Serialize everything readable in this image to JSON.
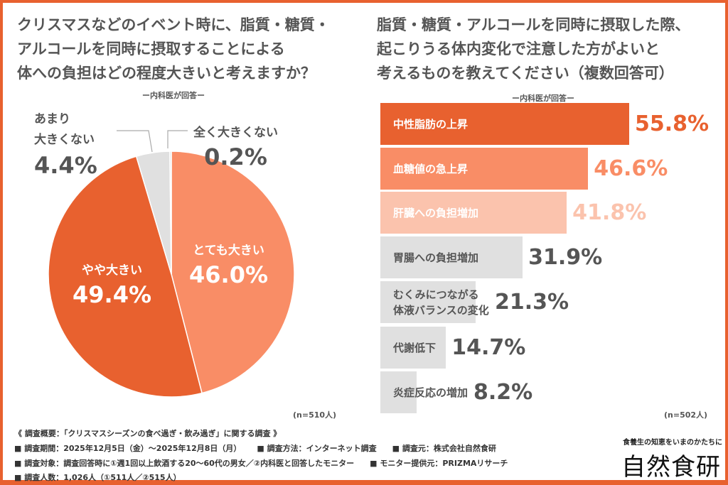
{
  "left": {
    "title_lines": [
      "クリスマスなどのイベント時に、脂質・糖質・",
      "アルコールを同時に摂取することによる",
      "体への負担はどの程度大きいと考えますか？"
    ],
    "respondent": "ー内科医が回答ー",
    "n": "(n=510人)"
  },
  "right": {
    "title_lines": [
      "脂質・糖質・アルコールを同時に摂取した際、",
      "起こりうる体内変化で注意した方がよいと",
      "考えるものを教えてください（複数回答可）"
    ],
    "respondent": "ー内科医が回答ー",
    "n": "(n=502人)"
  },
  "chart_data": [
    {
      "type": "pie",
      "categories": [
        "とても大きい",
        "やや大きい",
        "あまり大きくない",
        "全く大きくない"
      ],
      "values": [
        46.0,
        49.4,
        4.4,
        0.2
      ],
      "labels": [
        "46.0%",
        "49.4%",
        "4.4%",
        "0.2%"
      ],
      "label_lines": [
        [
          "とても大きい"
        ],
        [
          "やや大きい"
        ],
        [
          "あまり",
          "大きくない"
        ],
        [
          "全く大きくない"
        ]
      ],
      "colors": [
        "#f98d66",
        "#e8612f",
        "#e0e0e0",
        "#d6d6d6"
      ],
      "start": "top",
      "direction": "clockwise"
    },
    {
      "type": "bar",
      "orientation": "horizontal",
      "categories": [
        "中性脂肪の上昇",
        "血糖値の急上昇",
        "肝臓への負担増加",
        "胃腸への負担増加",
        "むくみにつながる体液バランスの変化",
        "代謝低下",
        "炎症反応の増加"
      ],
      "category_lines": [
        [
          "中性脂肪の上昇"
        ],
        [
          "血糖値の急上昇"
        ],
        [
          "肝臓への負担増加"
        ],
        [
          "胃腸への負担増加"
        ],
        [
          "むくみにつながる",
          "体液バランスの変化"
        ],
        [
          "代謝低下"
        ],
        [
          "炎症反応の増加"
        ]
      ],
      "values": [
        55.8,
        46.6,
        41.8,
        31.9,
        21.3,
        14.7,
        8.2
      ],
      "labels": [
        "55.8%",
        "46.6%",
        "41.8%",
        "31.9%",
        "21.3%",
        "14.7%",
        "8.2%"
      ],
      "colors": [
        "#e8612f",
        "#f98d66",
        "#fbc3ad",
        "#e0e0e0",
        "#e0e0e0",
        "#e0e0e0",
        "#e0e0e0"
      ],
      "label_colors": [
        "#ffffff",
        "#ffffff",
        "#ffffff",
        "#555555",
        "#555555",
        "#555555",
        "#555555"
      ],
      "value_colors": [
        "#e8612f",
        "#f98d66",
        "#fbc3ad",
        "#555555",
        "#555555",
        "#555555",
        "#555555"
      ],
      "unit": "%"
    }
  ],
  "footer": {
    "lines": [
      "《 調査概要：「クリスマスシーズンの食べ過ぎ・飲み過ぎ」に関する調査 》",
      "■ 調査期間：2025年12月5日（金）〜2025年12月8日（月）",
      "■ 調査方法：インターネット調査",
      "■ 調査元：株式会社自然食研",
      "■ 調査対象：調査回答時に①週1回以上飲酒する20〜60代の男女／②内科医と回答したモニター",
      "■ モニター提供元：PRIZMAリサーチ",
      "■ 調査人数：1,026人（①511人／②515人）"
    ],
    "logo_tagline": "食養生の知恵をいまのかたちに",
    "logo": "自然食研"
  },
  "colors": {
    "accent": "#e8612f",
    "frame": "#e8612f",
    "text": "#555555"
  }
}
